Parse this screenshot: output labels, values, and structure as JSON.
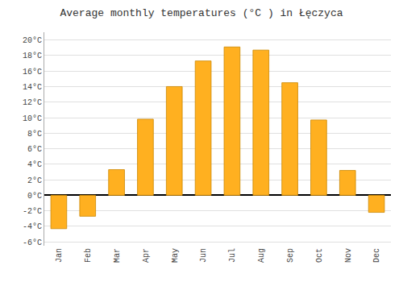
{
  "chart_data": {
    "type": "bar",
    "title": "Average monthly temperatures (°C ) in Łęczyca",
    "categories": [
      "Jan",
      "Feb",
      "Mar",
      "Apr",
      "May",
      "Jun",
      "Jul",
      "Aug",
      "Sep",
      "Oct",
      "Nov",
      "Dec"
    ],
    "values": [
      -4.3,
      -2.7,
      3.3,
      9.8,
      14.0,
      17.3,
      19.1,
      18.7,
      14.5,
      9.7,
      3.2,
      -2.2
    ],
    "color": "#FFB020",
    "ylim": [
      -6.5,
      21
    ],
    "yticks": [
      {
        "value": -6,
        "label": "-6°C"
      },
      {
        "value": -4,
        "label": "-4°C"
      },
      {
        "value": -2,
        "label": "-2°C"
      },
      {
        "value": 0,
        "label": "0°C"
      },
      {
        "value": 2,
        "label": "2°C"
      },
      {
        "value": 4,
        "label": "4°C"
      },
      {
        "value": 6,
        "label": "6°C"
      },
      {
        "value": 8,
        "label": "8°C"
      },
      {
        "value": 10,
        "label": "10°C"
      },
      {
        "value": 12,
        "label": "12°C"
      },
      {
        "value": 14,
        "label": "14°C"
      },
      {
        "value": 16,
        "label": "16°C"
      },
      {
        "value": 18,
        "label": "18°C"
      },
      {
        "value": 20,
        "label": "20°C"
      }
    ],
    "grid": true
  }
}
